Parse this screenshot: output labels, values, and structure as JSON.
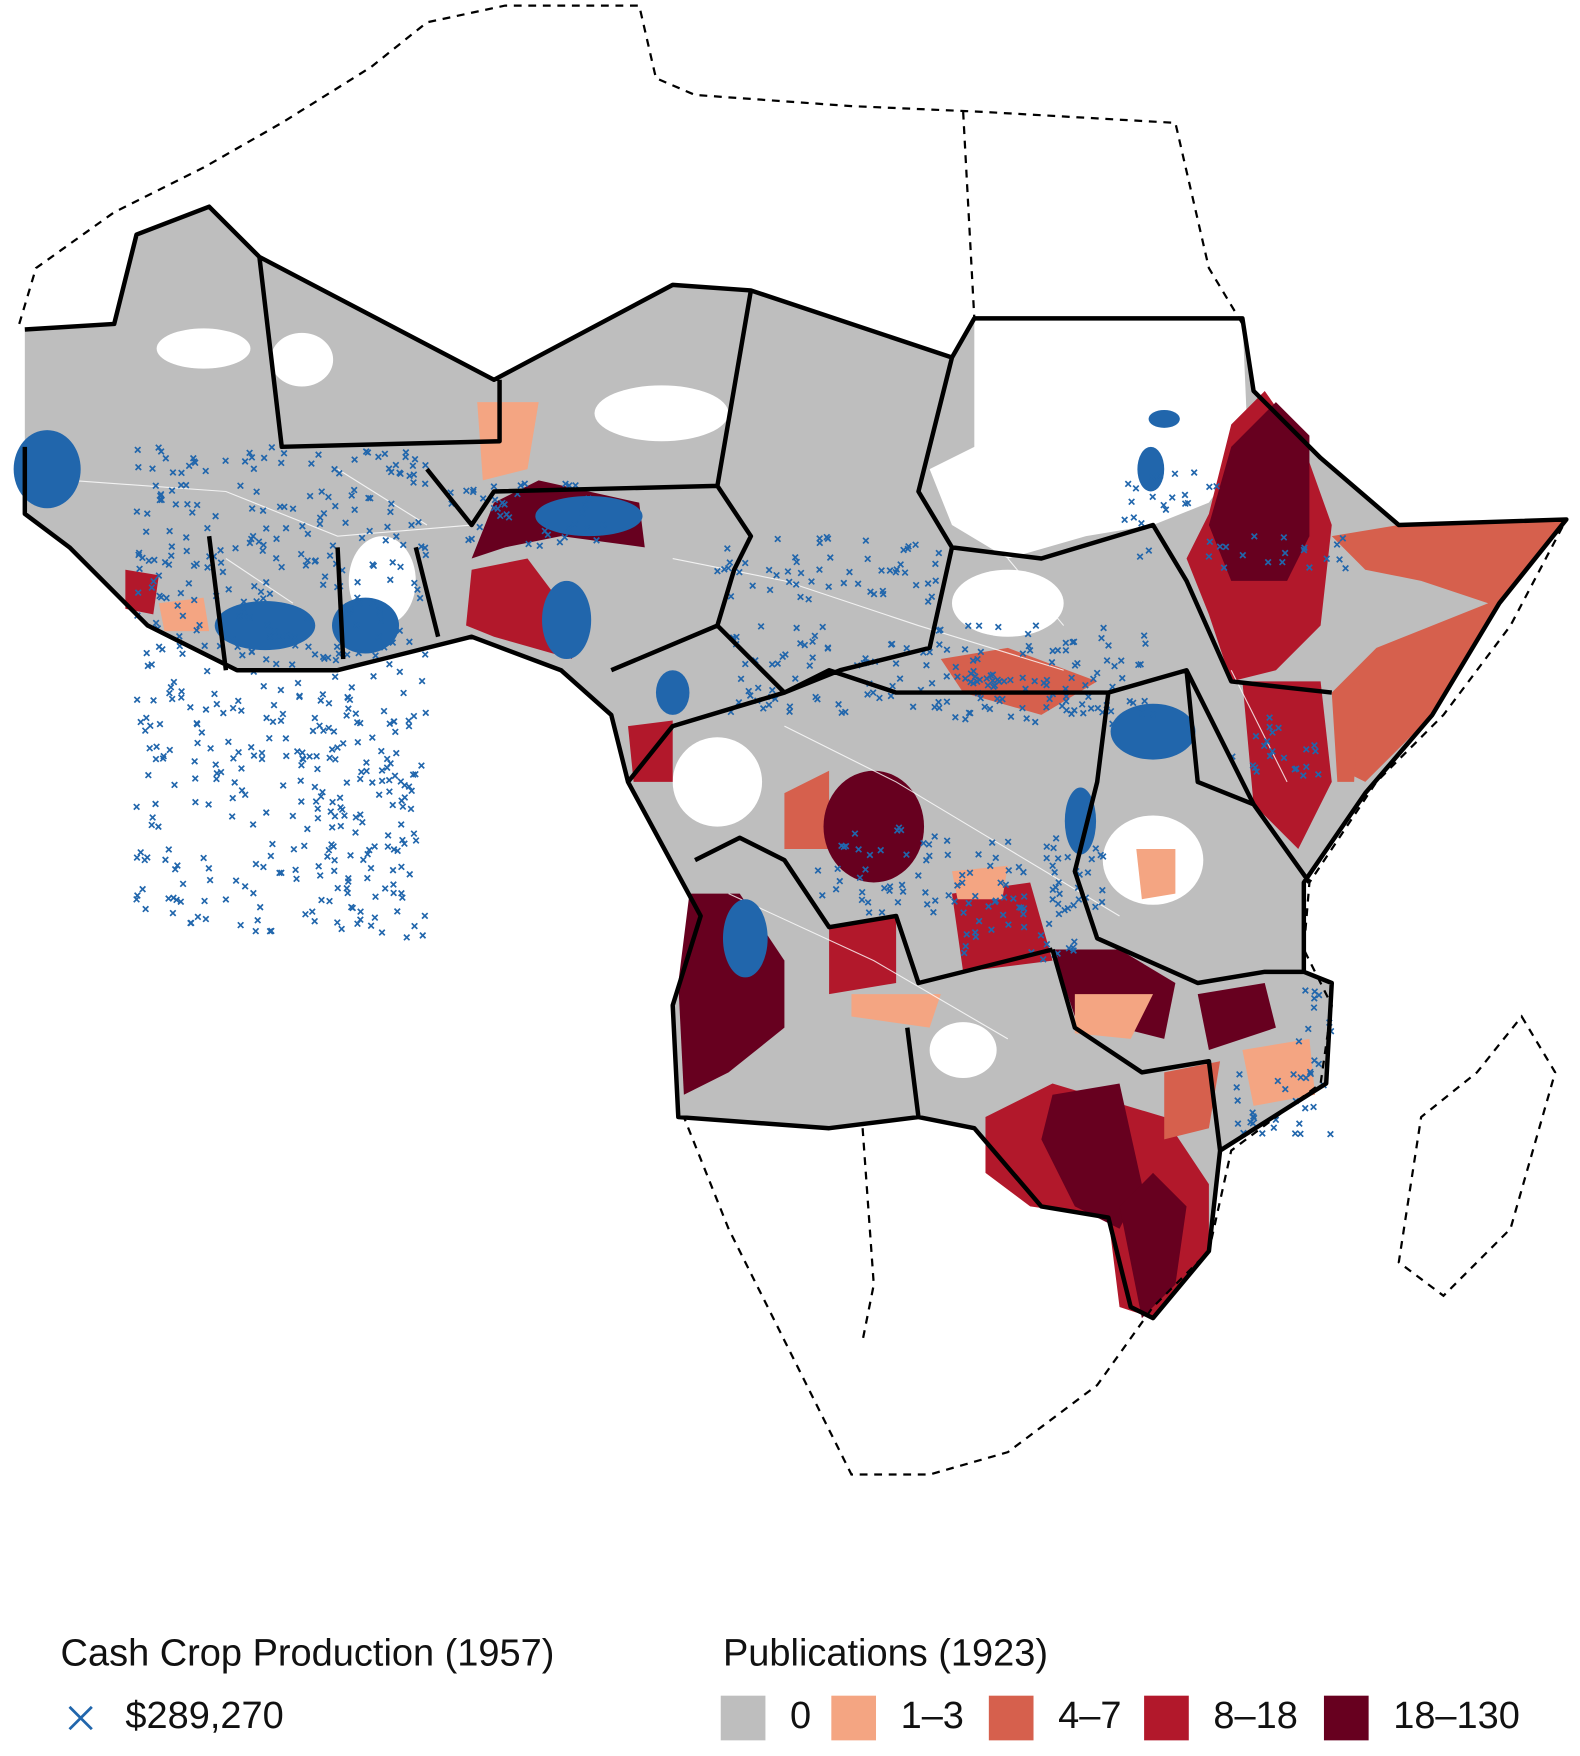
{
  "legends": {
    "cash_crop": {
      "title": "Cash Crop Production (1957)",
      "items": [
        {
          "label": "$289,270",
          "color": "#2166ac"
        }
      ]
    },
    "publications": {
      "title": "Publications (1923)",
      "items": [
        {
          "label": "0",
          "color": "#bebebe"
        },
        {
          "label": "1–3",
          "color": "#f4a582"
        },
        {
          "label": "4–7",
          "color": "#d6604d"
        },
        {
          "label": "8–18",
          "color": "#b2182b"
        },
        {
          "label": "18–130",
          "color": "#67001f"
        }
      ]
    }
  }
}
